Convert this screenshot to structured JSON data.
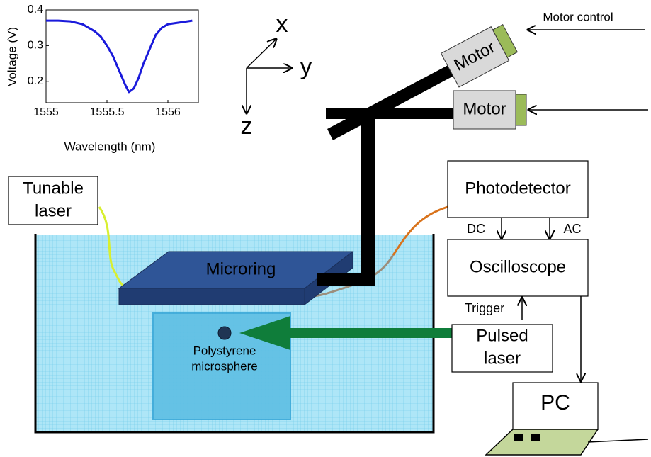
{
  "chart_data": {
    "type": "line",
    "x_label": "Wavelength (nm)",
    "y_label": "Voltage (V)",
    "x": [
      1555,
      1555.1,
      1555.2,
      1555.3,
      1555.4,
      1555.45,
      1555.5,
      1555.55,
      1555.6,
      1555.65,
      1555.68,
      1555.72,
      1555.76,
      1555.8,
      1555.85,
      1555.9,
      1555.95,
      1556,
      1556.1,
      1556.2
    ],
    "values": [
      0.37,
      0.37,
      0.368,
      0.36,
      0.34,
      0.325,
      0.3,
      0.27,
      0.23,
      0.19,
      0.17,
      0.18,
      0.21,
      0.25,
      0.29,
      0.33,
      0.35,
      0.36,
      0.365,
      0.37
    ],
    "color": "#1a1adb",
    "xlim": [
      1555,
      1556.25
    ],
    "xticks": [
      1555,
      1555.5,
      1556
    ],
    "ylim": [
      0.14,
      0.4
    ],
    "yticks": [
      0.2,
      0.3,
      0.4
    ]
  },
  "axes_labels": {
    "x": "x",
    "y": "y",
    "z": "z"
  },
  "motor_control": "Motor control",
  "motor_top": "Motor",
  "motor_side": "Motor",
  "photodetector": "Photodetector",
  "tunable_laser": [
    "Tunable",
    "laser"
  ],
  "dc": "DC",
  "ac": "AC",
  "microring": "Microring",
  "oscilloscope": "Oscilloscope",
  "trigger": "Trigger",
  "pulsed_laser": [
    "Pulsed",
    "laser"
  ],
  "microsphere": [
    "Polystyrene",
    "microsphere"
  ],
  "pc": "PC"
}
